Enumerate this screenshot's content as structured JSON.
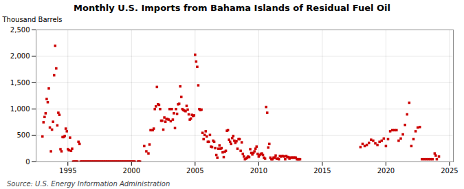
{
  "chart_data": {
    "type": "scatter",
    "title": "Monthly U.S. Imports from Bahama Islands of Residual Fuel Oil",
    "ylabel": "Thousand Barrels",
    "source": "Source: U.S. Energy Information Administration",
    "color": "#cc0000",
    "marker": "square",
    "grid": true,
    "xlim": [
      1992.5,
      2025.3
    ],
    "ylim": [
      0,
      2500
    ],
    "xticks": [
      1995,
      2000,
      2005,
      2010,
      2015,
      2020,
      2025
    ],
    "yticks": [
      0,
      500,
      {
        "value": 1000,
        "label": "1,000"
      },
      {
        "value": 1500,
        "label": "1,500"
      },
      {
        "value": 2000,
        "label": "2,000"
      },
      {
        "value": 2500,
        "label": "2,500"
      }
    ],
    "x": [
      1993.0,
      1993.083,
      1993.167,
      1993.25,
      1993.333,
      1993.417,
      1993.5,
      1993.583,
      1993.667,
      1993.75,
      1993.833,
      1993.917,
      1994.0,
      1994.083,
      1994.167,
      1994.25,
      1994.333,
      1994.417,
      1994.5,
      1994.583,
      1994.667,
      1994.75,
      1994.833,
      1994.917,
      1995.0,
      1995.083,
      1995.167,
      1995.25,
      1995.333,
      1995.417,
      1995.5,
      1995.583,
      1995.667,
      1995.75,
      1995.833,
      1995.917,
      1996.0,
      1996.083,
      1996.167,
      1996.25,
      1996.333,
      1996.417,
      1996.5,
      1996.583,
      1996.667,
      1996.75,
      1996.833,
      1996.917,
      1997.0,
      1997.083,
      1997.167,
      1997.25,
      1997.333,
      1997.417,
      1997.5,
      1997.583,
      1997.667,
      1997.75,
      1997.833,
      1997.917,
      1998.0,
      1998.083,
      1998.167,
      1998.25,
      1998.333,
      1998.417,
      1998.5,
      1998.583,
      1998.667,
      1998.75,
      1998.833,
      1998.917,
      1999.0,
      1999.083,
      1999.167,
      1999.25,
      1999.333,
      1999.417,
      1999.5,
      1999.583,
      1999.667,
      1999.75,
      1999.833,
      1999.917,
      2000.0,
      2000.083,
      2000.167,
      2000.25,
      2000.5,
      2000.583,
      2000.667,
      2001.0,
      2001.167,
      2001.333,
      2001.417,
      2001.5,
      2001.667,
      2001.75,
      2001.833,
      2001.917,
      2002.0,
      2002.083,
      2002.167,
      2002.25,
      2002.333,
      2002.417,
      2002.5,
      2002.583,
      2002.667,
      2002.75,
      2002.833,
      2002.917,
      2003.0,
      2003.083,
      2003.167,
      2003.25,
      2003.333,
      2003.417,
      2003.5,
      2003.583,
      2003.667,
      2003.75,
      2003.833,
      2003.917,
      2004.0,
      2004.083,
      2004.167,
      2004.25,
      2004.333,
      2004.417,
      2004.5,
      2004.583,
      2004.667,
      2004.75,
      2004.833,
      2004.917,
      2005.0,
      2005.083,
      2005.167,
      2005.25,
      2005.333,
      2005.417,
      2005.5,
      2005.583,
      2005.667,
      2005.75,
      2005.833,
      2005.917,
      2006.0,
      2006.083,
      2006.167,
      2006.25,
      2006.333,
      2006.417,
      2006.5,
      2006.583,
      2006.667,
      2006.75,
      2006.833,
      2006.917,
      2007.0,
      2007.083,
      2007.167,
      2007.25,
      2007.333,
      2007.417,
      2007.5,
      2007.583,
      2007.667,
      2007.75,
      2007.833,
      2007.917,
      2008.0,
      2008.083,
      2008.167,
      2008.25,
      2008.333,
      2008.417,
      2008.5,
      2008.583,
      2008.667,
      2008.75,
      2008.833,
      2008.917,
      2009.0,
      2009.083,
      2009.167,
      2009.25,
      2009.333,
      2009.417,
      2009.5,
      2009.583,
      2009.667,
      2009.75,
      2009.833,
      2009.917,
      2010.0,
      2010.083,
      2010.167,
      2010.25,
      2010.333,
      2010.417,
      2010.5,
      2010.583,
      2010.667,
      2010.75,
      2010.833,
      2010.917,
      2011.0,
      2011.083,
      2011.167,
      2011.25,
      2011.333,
      2011.417,
      2011.5,
      2011.583,
      2011.667,
      2011.75,
      2011.833,
      2011.917,
      2012.0,
      2012.083,
      2012.167,
      2012.25,
      2012.333,
      2012.417,
      2012.5,
      2012.583,
      2012.667,
      2012.75,
      2012.833,
      2012.917,
      2013.0,
      2013.083,
      2013.167,
      2013.25,
      2018.0,
      2018.167,
      2018.333,
      2018.5,
      2018.667,
      2018.833,
      2019.0,
      2019.167,
      2019.333,
      2019.5,
      2019.667,
      2019.833,
      2020.0,
      2020.167,
      2020.333,
      2020.5,
      2020.667,
      2020.833,
      2021.0,
      2021.167,
      2021.333,
      2021.5,
      2021.667,
      2021.833,
      2022.0,
      2022.167,
      2022.333,
      2022.5,
      2022.667,
      2022.833,
      2023.0,
      2023.167,
      2023.333,
      2023.5,
      2023.667,
      2023.833,
      2023.917,
      2024.0,
      2024.167
    ],
    "values": [
      480,
      750,
      850,
      920,
      1190,
      1130,
      1390,
      650,
      200,
      610,
      760,
      1640,
      2200,
      1770,
      690,
      930,
      890,
      240,
      200,
      470,
      470,
      490,
      630,
      580,
      240,
      220,
      460,
      210,
      250,
      5,
      5,
      5,
      5,
      5,
      380,
      340,
      5,
      5,
      5,
      5,
      5,
      5,
      5,
      5,
      5,
      5,
      5,
      5,
      5,
      5,
      5,
      5,
      5,
      5,
      5,
      5,
      5,
      5,
      5,
      5,
      5,
      5,
      5,
      5,
      5,
      5,
      5,
      5,
      5,
      5,
      5,
      5,
      5,
      5,
      5,
      5,
      5,
      5,
      5,
      5,
      5,
      5,
      5,
      5,
      5,
      5,
      5,
      5,
      5,
      5,
      5,
      300,
      200,
      160,
      330,
      600,
      600,
      630,
      1000,
      1050,
      1420,
      1090,
      1080,
      1000,
      780,
      780,
      610,
      840,
      760,
      810,
      810,
      800,
      1000,
      770,
      1000,
      800,
      920,
      640,
      1000,
      910,
      1090,
      1100,
      1430,
      1230,
      1000,
      980,
      970,
      960,
      1060,
      990,
      900,
      800,
      820,
      890,
      870,
      880,
      2030,
      1900,
      1800,
      1450,
      1000,
      980,
      990,
      550,
      430,
      510,
      580,
      480,
      380,
      380,
      510,
      290,
      280,
      400,
      380,
      260,
      130,
      80,
      250,
      310,
      250,
      260,
      180,
      90,
      190,
      210,
      590,
      600,
      420,
      380,
      340,
      450,
      490,
      400,
      360,
      390,
      250,
      430,
      430,
      210,
      370,
      150,
      100,
      50,
      60,
      80,
      100,
      90,
      240,
      170,
      140,
      170,
      200,
      250,
      290,
      150,
      100,
      130,
      150,
      160,
      130,
      80,
      60,
      1040,
      930,
      270,
      340,
      80,
      50,
      50,
      80,
      80,
      120,
      60,
      60,
      50,
      110,
      100,
      110,
      110,
      100,
      50,
      110,
      90,
      90,
      60,
      80,
      80,
      80,
      80,
      80,
      80,
      50,
      50,
      50,
      50,
      280,
      340,
      300,
      320,
      360,
      420,
      400,
      350,
      320,
      380,
      400,
      440,
      300,
      430,
      580,
      600,
      600,
      600,
      400,
      440,
      520,
      700,
      900,
      1120,
      300,
      430,
      580,
      650,
      660,
      50,
      50,
      50,
      50,
      50,
      50,
      160,
      120,
      50,
      100
    ]
  }
}
